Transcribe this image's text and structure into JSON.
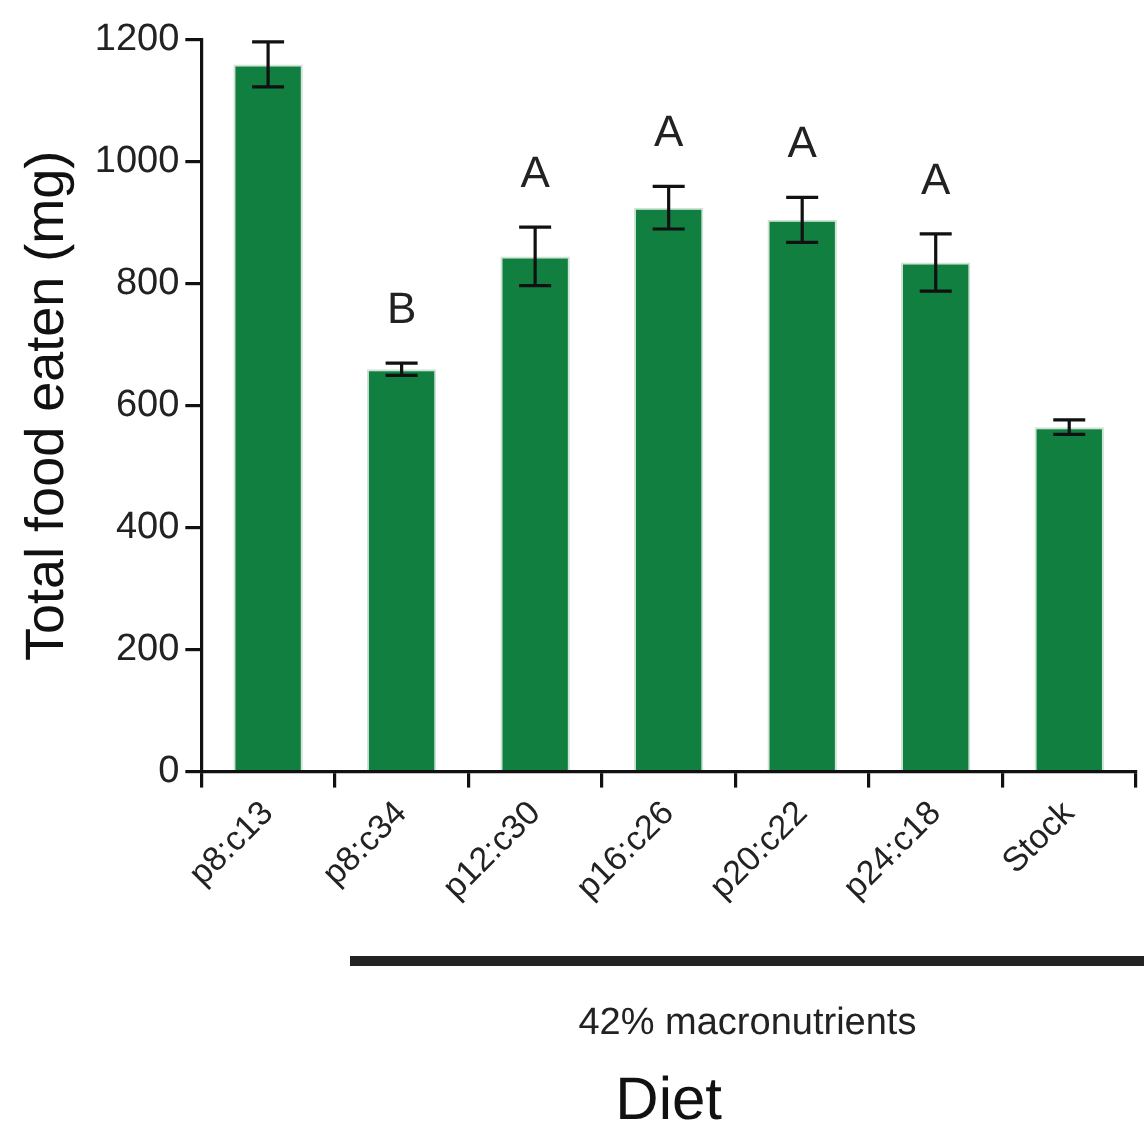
{
  "chart_data": {
    "type": "bar",
    "xlabel": "Diet",
    "ylabel": "Total food eaten (mg)",
    "categories": [
      "p8:c13",
      "p8:c34",
      "p12:c30",
      "p16:c26",
      "p20:c22",
      "p24:c18",
      "Stock"
    ],
    "values": [
      1160,
      660,
      845,
      925,
      905,
      835,
      565
    ],
    "errors": [
      37,
      10,
      48,
      35,
      37,
      47,
      12
    ],
    "color": "#117f40",
    "ylim": [
      0,
      1200
    ],
    "yticks": [
      0,
      200,
      400,
      600,
      800,
      1000,
      1200
    ],
    "grid": false,
    "legend": false,
    "annotations": [
      {
        "text": "B",
        "x": "p8:c34",
        "y": 660
      },
      {
        "text": "A",
        "x": "p12:c30",
        "y": 845
      },
      {
        "text": "A",
        "x": "p16:c26",
        "y": 925
      },
      {
        "text": "A",
        "x": "p20:c22",
        "y": 905
      },
      {
        "text": "A",
        "x": "p24:c18",
        "y": 835
      },
      "42% macronutrients"
    ]
  }
}
